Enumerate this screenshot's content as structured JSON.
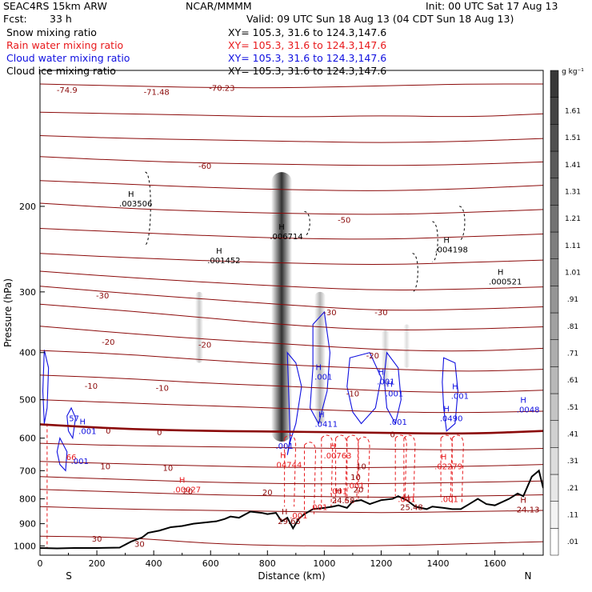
{
  "header": {
    "model": "SEAC4RS 15km ARW",
    "org": "NCAR/MMMM",
    "init": "Init: 00 UTC Sat 17 Aug 13",
    "fcst_label": "Fcst:",
    "fcst_value": "33 h",
    "valid": "Valid: 09 UTC Sun 18 Aug 13 (04 CDT Sun 18 Aug 13)",
    "fields": [
      {
        "name": "Snow mixing ratio",
        "xy": "XY= 105.3, 31.6 to 124.3,147.6",
        "color": "#000000"
      },
      {
        "name": "Rain water mixing ratio",
        "xy": "XY= 105.3, 31.6 to 124.3,147.6",
        "color": "#e8191c"
      },
      {
        "name": "Cloud water mixing ratio",
        "xy": "XY= 105.3, 31.6 to 124.3,147.6",
        "color": "#1010e0"
      },
      {
        "name": "Cloud ice mixing ratio",
        "xy": "XY= 105.3, 31.6 to 124.3,147.6",
        "color": "#000000"
      }
    ]
  },
  "chart_data": {
    "type": "cross-section",
    "xlabel": "Distance (km)",
    "ylabel": "Pressure (hPa)",
    "x_ticks": [
      0,
      200,
      400,
      600,
      800,
      1000,
      1200,
      1400,
      1600
    ],
    "y_ticks": [
      200,
      300,
      400,
      500,
      600,
      700,
      800,
      900,
      1000
    ],
    "xlim": [
      0,
      1770
    ],
    "ylim": [
      105,
      1045
    ],
    "y_scale": "log",
    "left_end_label": "S",
    "right_end_label": "N",
    "colorbar": {
      "unit": "g kg⁻¹",
      "levels": [
        ".01",
        ".11",
        ".21",
        ".31",
        ".41",
        ".51",
        ".61",
        ".71",
        ".81",
        ".91",
        "1.01",
        "1.11",
        "1.21",
        "1.31",
        "1.41",
        "1.51",
        "1.61"
      ]
    },
    "temperature_contours": [
      {
        "label": "-74.9",
        "p": 115
      },
      {
        "label": "-71.48",
        "p": 116
      },
      {
        "label": "-70.23",
        "p": 114
      },
      {
        "label": "-60",
        "p": 165
      },
      {
        "label": "-50",
        "p": 213
      },
      {
        "label": "-30",
        "p": 305
      },
      {
        "label": "-30",
        "p": 330
      },
      {
        "label": "-30",
        "p": 330
      },
      {
        "label": "-20",
        "p": 380
      },
      {
        "label": "-20",
        "p": 385
      },
      {
        "label": "-20",
        "p": 405
      },
      {
        "label": "-10",
        "p": 468
      },
      {
        "label": "-10",
        "p": 472
      },
      {
        "label": "-10",
        "p": 485
      },
      {
        "label": "0",
        "p": 578
      },
      {
        "label": "0",
        "p": 583
      },
      {
        "label": "0",
        "p": 588
      },
      {
        "label": "10",
        "p": 685
      },
      {
        "label": "10",
        "p": 690
      },
      {
        "label": "10",
        "p": 685
      },
      {
        "label": "20",
        "p": 770
      },
      {
        "label": "20",
        "p": 775
      },
      {
        "label": "30",
        "p": 965
      },
      {
        "label": "30",
        "p": 990
      }
    ],
    "temperature_profiles": {
      "x": [
        0,
        300,
        600,
        900,
        1200,
        1500,
        1770
      ],
      "levels": [
        {
          "t": -74.9,
          "p": [
            112,
            113,
            114,
            114,
            113,
            112,
            112
          ]
        },
        {
          "t": -70,
          "p": [
            128,
            129,
            130,
            131,
            130,
            131,
            129
          ]
        },
        {
          "t": -65,
          "p": [
            143,
            145,
            146,
            147,
            148,
            147,
            145
          ]
        },
        {
          "t": -60,
          "p": [
            158,
            161,
            163,
            164,
            165,
            164,
            162
          ]
        },
        {
          "t": -55,
          "p": [
            177,
            180,
            183,
            185,
            186,
            184,
            181
          ]
        },
        {
          "t": -50,
          "p": [
            197,
            202,
            205,
            207,
            208,
            206,
            203
          ]
        },
        {
          "t": -45,
          "p": [
            222,
            226,
            230,
            233,
            234,
            231,
            228
          ]
        },
        {
          "t": -40,
          "p": [
            250,
            255,
            259,
            262,
            264,
            261,
            258
          ]
        },
        {
          "t": -35,
          "p": [
            272,
            280,
            287,
            293,
            298,
            296,
            293
          ]
        },
        {
          "t": -30,
          "p": [
            292,
            302,
            311,
            320,
            328,
            326,
            322
          ]
        },
        {
          "t": -25,
          "p": [
            318,
            328,
            340,
            352,
            360,
            358,
            354
          ]
        },
        {
          "t": -20,
          "p": [
            353,
            365,
            376,
            385,
            395,
            398,
            392
          ]
        },
        {
          "t": -15,
          "p": [
            396,
            403,
            415,
            425,
            432,
            438,
            433
          ]
        },
        {
          "t": -10,
          "p": [
            445,
            452,
            463,
            470,
            480,
            484,
            478
          ]
        },
        {
          "t": -5,
          "p": [
            500,
            508,
            515,
            522,
            530,
            532,
            528
          ]
        },
        {
          "t": 0,
          "p": [
            562,
            575,
            580,
            582,
            585,
            588,
            580
          ]
        },
        {
          "t": 5,
          "p": [
            615,
            622,
            625,
            628,
            632,
            635,
            630
          ]
        },
        {
          "t": 10,
          "p": [
            670,
            678,
            685,
            690,
            690,
            686,
            680
          ]
        },
        {
          "t": 15,
          "p": [
            720,
            730,
            740,
            745,
            745,
            740,
            735
          ]
        },
        {
          "t": 20,
          "p": [
            765,
            775,
            785,
            790,
            795,
            790,
            785
          ]
        },
        {
          "t": 25,
          "p": [
            830,
            840,
            845,
            850,
            855,
            850,
            845
          ]
        },
        {
          "t": 30,
          "p": [
            955,
            960,
            990,
            1000,
            1000,
            990,
            980
          ]
        }
      ]
    },
    "freezing_level_bold": true,
    "terrain": {
      "x": [
        0,
        60,
        120,
        200,
        280,
        320,
        360,
        380,
        420,
        460,
        500,
        540,
        580,
        620,
        650,
        670,
        700,
        740,
        780,
        800,
        830,
        850,
        870,
        890,
        910,
        930,
        960,
        1000,
        1030,
        1050,
        1080,
        1100,
        1130,
        1160,
        1200,
        1240,
        1260,
        1290,
        1320,
        1360,
        1380,
        1420,
        1450,
        1480,
        1510,
        1540,
        1570,
        1600,
        1620,
        1650,
        1680,
        1700,
        1730,
        1755,
        1770
      ],
      "p": [
        1010,
        1012,
        1010,
        1010,
        1008,
        980,
        960,
        940,
        930,
        915,
        910,
        900,
        895,
        890,
        880,
        870,
        875,
        850,
        855,
        860,
        855,
        890,
        875,
        920,
        880,
        860,
        840,
        835,
        830,
        825,
        835,
        810,
        805,
        820,
        805,
        800,
        790,
        805,
        830,
        840,
        830,
        835,
        840,
        840,
        820,
        800,
        820,
        825,
        815,
        800,
        780,
        790,
        720,
        700,
        760
      ]
    },
    "highs": [
      {
        "x": 320,
        "p": 197,
        "label": ".003506"
      },
      {
        "x": 630,
        "p": 258,
        "label": ".001452"
      },
      {
        "x": 850,
        "p": 230,
        "label": ".006714"
      },
      {
        "x": 1430,
        "p": 245,
        "label": ".004198"
      },
      {
        "x": 1620,
        "p": 285,
        "label": ".000521"
      },
      {
        "x": 980,
        "p": 448,
        "label": ".001",
        "color": "#1010e0"
      },
      {
        "x": 1200,
        "p": 458,
        "label": ".001",
        "color": "#1010e0"
      },
      {
        "x": 1230,
        "p": 485,
        "label": ".001",
        "color": "#1010e0"
      },
      {
        "x": 1460,
        "p": 490,
        "label": ".001",
        "color": "#1010e0"
      },
      {
        "x": 990,
        "p": 560,
        "label": ".0411",
        "color": "#1010e0"
      },
      {
        "x": 1430,
        "p": 545,
        "label": ".0490",
        "color": "#1010e0"
      },
      {
        "x": 1700,
        "p": 523,
        "label": ".0048",
        "color": "#1010e0"
      },
      {
        "x": 150,
        "p": 580,
        "label": ".001",
        "color": "#1010e0"
      },
      {
        "x": 855,
        "p": 680,
        "label": ".04744",
        "color": "#e8191c"
      },
      {
        "x": 1030,
        "p": 650,
        "label": ".00763",
        "color": "#e8191c"
      },
      {
        "x": 1420,
        "p": 685,
        "label": ".02279",
        "color": "#e8191c"
      },
      {
        "x": 500,
        "p": 765,
        "label": ".00027",
        "color": "#e8191c"
      },
      {
        "x": 860,
        "p": 888,
        "label": "29.65",
        "color": "#8b0000"
      },
      {
        "x": 1050,
        "p": 805,
        "label": "24.58",
        "color": "#8b0000"
      },
      {
        "x": 1290,
        "p": 830,
        "label": "25.48",
        "color": "#8b0000"
      },
      {
        "x": 1700,
        "p": 840,
        "label": "24.13",
        "color": "#8b0000"
      }
    ],
    "small_labels": [
      {
        "x": 120,
        "p": 545,
        "label": "57",
        "color": "#1010e0"
      },
      {
        "x": 110,
        "p": 655,
        "label": "66",
        "color": "#e8191c"
      },
      {
        "x": 140,
        "p": 668,
        "label": ".001",
        "color": "#1010e0"
      },
      {
        "x": 860,
        "p": 622,
        "label": ".001",
        "color": "#1010e0"
      },
      {
        "x": 980,
        "p": 830,
        "label": ".001",
        "color": "#e8191c"
      },
      {
        "x": 1050,
        "p": 770,
        "label": ".001",
        "color": "#e8191c"
      },
      {
        "x": 1110,
        "p": 750,
        "label": ".001",
        "color": "#e8191c"
      },
      {
        "x": 1110,
        "p": 720,
        "label": "10",
        "color": "#8b0000"
      },
      {
        "x": 1120,
        "p": 765,
        "label": "20",
        "color": "#8b0000"
      },
      {
        "x": 1290,
        "p": 800,
        "label": ".001",
        "color": "#e8191c"
      },
      {
        "x": 1440,
        "p": 800,
        "label": ".001",
        "color": "#e8191c"
      },
      {
        "x": 1260,
        "p": 555,
        "label": ".001",
        "color": "#1010e0"
      },
      {
        "x": 910,
        "p": 865,
        "label": ".001",
        "color": "#e8191c"
      }
    ]
  }
}
